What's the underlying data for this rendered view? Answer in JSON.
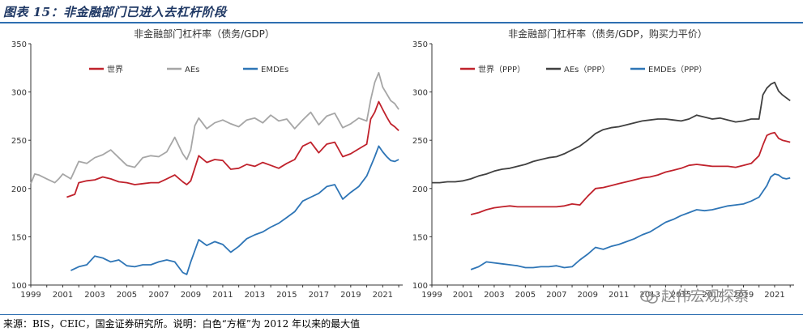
{
  "figure_title": "图表 15：非金融部门已进入去杠杆阶段",
  "footer_text": "来源：BIS，CEIC，国金证券研究所。说明：白色“方框”为 2012 年以来的最大值",
  "watermark_text": "赵伟宏观探索",
  "chart_data": [
    {
      "type": "line",
      "title": "非金融部门杠杆率（债务/GDP）",
      "ylim": [
        100,
        350
      ],
      "yticks": [
        100,
        150,
        200,
        250,
        300,
        350
      ],
      "xlim": [
        1999,
        2022.25
      ],
      "xticks": [
        "1999",
        "2001",
        "2003",
        "2005",
        "2007",
        "2009",
        "2011",
        "2013",
        "2015",
        "2017",
        "2019",
        "2021"
      ],
      "series": [
        {
          "name": "世界",
          "color": "#c0222c",
          "x": [
            2001.25,
            2001.75,
            2002,
            2002.5,
            2003,
            2003.5,
            2004,
            2004.5,
            2005,
            2005.5,
            2006,
            2006.5,
            2007,
            2007.5,
            2008,
            2008.5,
            2008.75,
            2009,
            2009.5,
            2010,
            2010.5,
            2011,
            2011.5,
            2012,
            2012.5,
            2013,
            2013.5,
            2014,
            2014.5,
            2015,
            2015.5,
            2016,
            2016.5,
            2017,
            2017.5,
            2018,
            2018.5,
            2019,
            2019.5,
            2020,
            2020.25,
            2020.5,
            2020.75,
            2021,
            2021.25,
            2021.5,
            2021.75,
            2022
          ],
          "values": [
            191,
            194,
            206,
            208,
            209,
            212,
            210,
            207,
            206,
            204,
            205,
            206,
            206,
            210,
            214,
            207,
            204,
            208,
            234,
            227,
            230,
            229,
            220,
            221,
            225,
            223,
            227,
            224,
            221,
            226,
            230,
            244,
            248,
            237,
            246,
            248,
            233,
            236,
            241,
            246,
            272,
            279,
            290,
            282,
            274,
            267,
            264,
            260
          ]
        },
        {
          "name": "AEs",
          "color": "#a6a6a6",
          "x": [
            1999,
            1999.25,
            1999.5,
            2000,
            2000.5,
            2000.75,
            2001,
            2001.5,
            2002,
            2002.5,
            2003,
            2003.5,
            2004,
            2004.5,
            2005,
            2005.5,
            2006,
            2006.5,
            2007,
            2007.5,
            2008,
            2008.5,
            2008.75,
            2009,
            2009.25,
            2009.5,
            2010,
            2010.5,
            2011,
            2011.5,
            2012,
            2012.5,
            2013,
            2013.5,
            2014,
            2014.5,
            2015,
            2015.5,
            2016,
            2016.5,
            2017,
            2017.5,
            2018,
            2018.5,
            2019,
            2019.5,
            2020,
            2020.25,
            2020.5,
            2020.75,
            2021,
            2021.25,
            2021.5,
            2021.75,
            2022
          ],
          "values": [
            205,
            215,
            214,
            210,
            206,
            210,
            215,
            210,
            228,
            226,
            232,
            235,
            240,
            232,
            224,
            222,
            232,
            234,
            233,
            238,
            253,
            236,
            230,
            240,
            265,
            273,
            262,
            268,
            271,
            267,
            264,
            271,
            273,
            268,
            276,
            270,
            272,
            262,
            271,
            279,
            266,
            275,
            278,
            263,
            267,
            273,
            270,
            292,
            310,
            320,
            305,
            298,
            291,
            288,
            282
          ]
        },
        {
          "name": "EMDEs",
          "color": "#2e75b6",
          "x": [
            2001.5,
            2002,
            2002.5,
            2003,
            2003.5,
            2004,
            2004.5,
            2005,
            2005.5,
            2006,
            2006.5,
            2007,
            2007.5,
            2008,
            2008.5,
            2008.75,
            2009,
            2009.5,
            2010,
            2010.5,
            2011,
            2011.5,
            2012,
            2012.5,
            2013,
            2013.5,
            2014,
            2014.5,
            2015,
            2015.5,
            2016,
            2016.5,
            2017,
            2017.5,
            2018,
            2018.5,
            2019,
            2019.5,
            2020,
            2020.5,
            2020.75,
            2021,
            2021.25,
            2021.5,
            2021.75,
            2022
          ],
          "values": [
            115,
            119,
            121,
            130,
            128,
            124,
            126,
            120,
            119,
            121,
            121,
            124,
            126,
            124,
            113,
            111,
            124,
            147,
            141,
            145,
            142,
            134,
            140,
            148,
            152,
            155,
            160,
            164,
            170,
            176,
            187,
            191,
            195,
            202,
            204,
            189,
            196,
            202,
            213,
            233,
            244,
            238,
            233,
            229,
            228,
            230
          ]
        }
      ]
    },
    {
      "type": "line",
      "title": "非金融部门杠杆率（债务/GDP，购买力平价）",
      "ylim": [
        100,
        350
      ],
      "yticks": [
        100,
        150,
        200,
        250,
        300,
        350
      ],
      "xlim": [
        1999,
        2022.25
      ],
      "xticks": [
        "1999",
        "2001",
        "2003",
        "2005",
        "2007",
        "2009",
        "2011",
        "2013",
        "2015",
        "2017",
        "2019",
        "2021"
      ],
      "series": [
        {
          "name": "世界（PPP）",
          "color": "#c0222c",
          "x": [
            2001.5,
            2002,
            2002.5,
            2003,
            2003.5,
            2004,
            2004.5,
            2005,
            2005.5,
            2006,
            2006.5,
            2007,
            2007.5,
            2008,
            2008.5,
            2009,
            2009.5,
            2010,
            2010.5,
            2011,
            2011.5,
            2012,
            2012.5,
            2013,
            2013.5,
            2014,
            2014.5,
            2015,
            2015.5,
            2016,
            2016.5,
            2017,
            2017.5,
            2018,
            2018.5,
            2019,
            2019.5,
            2020,
            2020.25,
            2020.5,
            2020.75,
            2021,
            2021.25,
            2021.5,
            2021.75,
            2022
          ],
          "values": [
            173,
            175,
            178,
            180,
            181,
            182,
            181,
            181,
            181,
            181,
            181,
            181,
            182,
            184,
            183,
            192,
            200,
            201,
            203,
            205,
            207,
            209,
            211,
            212,
            214,
            217,
            219,
            221,
            224,
            225,
            224,
            223,
            223,
            223,
            222,
            224,
            226,
            234,
            245,
            255,
            257,
            258,
            252,
            250,
            249,
            248
          ]
        },
        {
          "name": "AEs（PPP）",
          "color": "#404040",
          "x": [
            1999,
            1999.5,
            2000,
            2000.5,
            2001,
            2001.5,
            2002,
            2002.5,
            2003,
            2003.5,
            2004,
            2004.5,
            2005,
            2005.5,
            2006,
            2006.5,
            2007,
            2007.5,
            2008,
            2008.5,
            2009,
            2009.5,
            2010,
            2010.5,
            2011,
            2011.5,
            2012,
            2012.5,
            2013,
            2013.5,
            2014,
            2014.5,
            2015,
            2015.5,
            2016,
            2016.5,
            2017,
            2017.5,
            2018,
            2018.5,
            2019,
            2019.5,
            2020,
            2020.25,
            2020.5,
            2020.75,
            2021,
            2021.25,
            2021.5,
            2021.75,
            2022
          ],
          "values": [
            206,
            206,
            207,
            207,
            208,
            210,
            213,
            215,
            218,
            220,
            221,
            223,
            225,
            228,
            230,
            232,
            233,
            236,
            240,
            244,
            250,
            257,
            261,
            263,
            264,
            266,
            268,
            270,
            271,
            272,
            272,
            271,
            270,
            272,
            276,
            274,
            272,
            273,
            271,
            269,
            270,
            272,
            272,
            297,
            304,
            308,
            310,
            301,
            297,
            294,
            291
          ]
        },
        {
          "name": "EMDEs（PPP）",
          "color": "#2e75b6",
          "x": [
            2001.5,
            2002,
            2002.5,
            2003,
            2003.5,
            2004,
            2004.5,
            2005,
            2005.5,
            2006,
            2006.5,
            2007,
            2007.5,
            2008,
            2008.5,
            2009,
            2009.5,
            2010,
            2010.5,
            2011,
            2011.5,
            2012,
            2012.5,
            2013,
            2013.5,
            2014,
            2014.5,
            2015,
            2015.5,
            2016,
            2016.5,
            2017,
            2017.5,
            2018,
            2018.5,
            2019,
            2019.5,
            2020,
            2020.5,
            2020.75,
            2021,
            2021.25,
            2021.5,
            2021.75,
            2022
          ],
          "values": [
            116,
            119,
            124,
            123,
            122,
            121,
            120,
            118,
            118,
            119,
            119,
            120,
            118,
            119,
            126,
            132,
            139,
            137,
            140,
            142,
            145,
            148,
            152,
            155,
            160,
            165,
            168,
            172,
            175,
            178,
            177,
            178,
            180,
            182,
            183,
            184,
            187,
            191,
            203,
            212,
            215,
            214,
            211,
            210,
            211
          ]
        }
      ]
    }
  ]
}
